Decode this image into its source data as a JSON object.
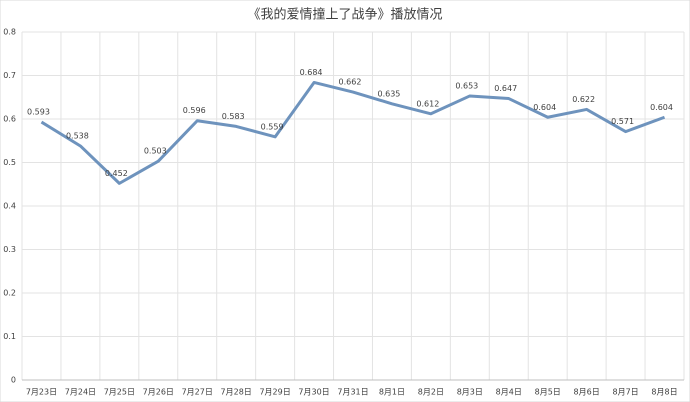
{
  "chart_data": {
    "type": "line",
    "title": "《我的爱情撞上了战争》播放情况",
    "categories": [
      "7月23日",
      "7月24日",
      "7月25日",
      "7月26日",
      "7月27日",
      "7月28日",
      "7月29日",
      "7月30日",
      "7月31日",
      "8月1日",
      "8月2日",
      "8月3日",
      "8月4日",
      "8月5日",
      "8月6日",
      "8月7日",
      "8月8日"
    ],
    "series": [
      {
        "name": "播放情况",
        "color": "#6e93bd",
        "values": [
          0.593,
          0.538,
          0.452,
          0.503,
          0.596,
          0.583,
          0.559,
          0.684,
          0.662,
          0.635,
          0.612,
          0.653,
          0.647,
          0.604,
          0.622,
          0.571,
          0.604
        ]
      }
    ],
    "ylim": [
      0,
      0.8
    ],
    "yticks": [
      0,
      0.1,
      0.2,
      0.3,
      0.4,
      0.5,
      0.6,
      0.7,
      0.8
    ],
    "grid": true
  }
}
